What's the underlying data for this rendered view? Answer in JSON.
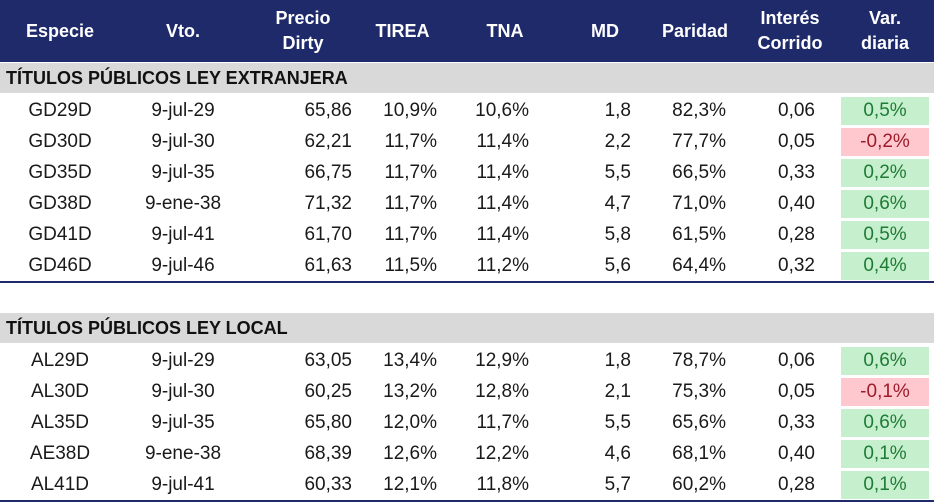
{
  "headers": {
    "especie": "Especie",
    "vto": "Vto.",
    "precio": "Precio\nDirty",
    "tirea": "TIREA",
    "tna": "TNA",
    "md": "MD",
    "paridad": "Paridad",
    "interes": "Interés\nCorrido",
    "var": "Var.\ndiaria"
  },
  "sections": [
    {
      "title": "TÍTULOS PÚBLICOS LEY EXTRANJERA",
      "rows": [
        {
          "especie": "GD29D",
          "vto": "9-jul-29",
          "precio": "65,86",
          "tirea": "10,9%",
          "tna": "10,6%",
          "md": "1,8",
          "paridad": "82,3%",
          "interes": "0,06",
          "var": "0,5%",
          "var_sign": "pos"
        },
        {
          "especie": "GD30D",
          "vto": "9-jul-30",
          "precio": "62,21",
          "tirea": "11,7%",
          "tna": "11,4%",
          "md": "2,2",
          "paridad": "77,7%",
          "interes": "0,05",
          "var": "-0,2%",
          "var_sign": "neg"
        },
        {
          "especie": "GD35D",
          "vto": "9-jul-35",
          "precio": "66,75",
          "tirea": "11,7%",
          "tna": "11,4%",
          "md": "5,5",
          "paridad": "66,5%",
          "interes": "0,33",
          "var": "0,2%",
          "var_sign": "pos"
        },
        {
          "especie": "GD38D",
          "vto": "9-ene-38",
          "precio": "71,32",
          "tirea": "11,7%",
          "tna": "11,4%",
          "md": "4,7",
          "paridad": "71,0%",
          "interes": "0,40",
          "var": "0,6%",
          "var_sign": "pos"
        },
        {
          "especie": "GD41D",
          "vto": "9-jul-41",
          "precio": "61,70",
          "tirea": "11,7%",
          "tna": "11,4%",
          "md": "5,8",
          "paridad": "61,5%",
          "interes": "0,28",
          "var": "0,5%",
          "var_sign": "pos"
        },
        {
          "especie": "GD46D",
          "vto": "9-jul-46",
          "precio": "61,63",
          "tirea": "11,5%",
          "tna": "11,2%",
          "md": "5,6",
          "paridad": "64,4%",
          "interes": "0,32",
          "var": "0,4%",
          "var_sign": "pos"
        }
      ]
    },
    {
      "title": "TÍTULOS PÚBLICOS LEY LOCAL",
      "rows": [
        {
          "especie": "AL29D",
          "vto": "9-jul-29",
          "precio": "63,05",
          "tirea": "13,4%",
          "tna": "12,9%",
          "md": "1,8",
          "paridad": "78,7%",
          "interes": "0,06",
          "var": "0,6%",
          "var_sign": "pos"
        },
        {
          "especie": "AL30D",
          "vto": "9-jul-30",
          "precio": "60,25",
          "tirea": "13,2%",
          "tna": "12,8%",
          "md": "2,1",
          "paridad": "75,3%",
          "interes": "0,05",
          "var": "-0,1%",
          "var_sign": "neg"
        },
        {
          "especie": "AL35D",
          "vto": "9-jul-35",
          "precio": "65,80",
          "tirea": "12,0%",
          "tna": "11,7%",
          "md": "5,5",
          "paridad": "65,6%",
          "interes": "0,33",
          "var": "0,6%",
          "var_sign": "pos"
        },
        {
          "especie": "AE38D",
          "vto": "9-ene-38",
          "precio": "68,39",
          "tirea": "12,6%",
          "tna": "12,2%",
          "md": "4,6",
          "paridad": "68,1%",
          "interes": "0,40",
          "var": "0,1%",
          "var_sign": "pos"
        },
        {
          "especie": "AL41D",
          "vto": "9-jul-41",
          "precio": "60,33",
          "tirea": "12,1%",
          "tna": "11,8%",
          "md": "5,7",
          "paridad": "60,2%",
          "interes": "0,28",
          "var": "0,1%",
          "var_sign": "pos"
        }
      ]
    }
  ],
  "colors": {
    "header_bg": "#1f2a6b",
    "section_bg": "#d9d9d9",
    "positive_bg": "#c6efce",
    "negative_bg": "#ffc7ce"
  }
}
